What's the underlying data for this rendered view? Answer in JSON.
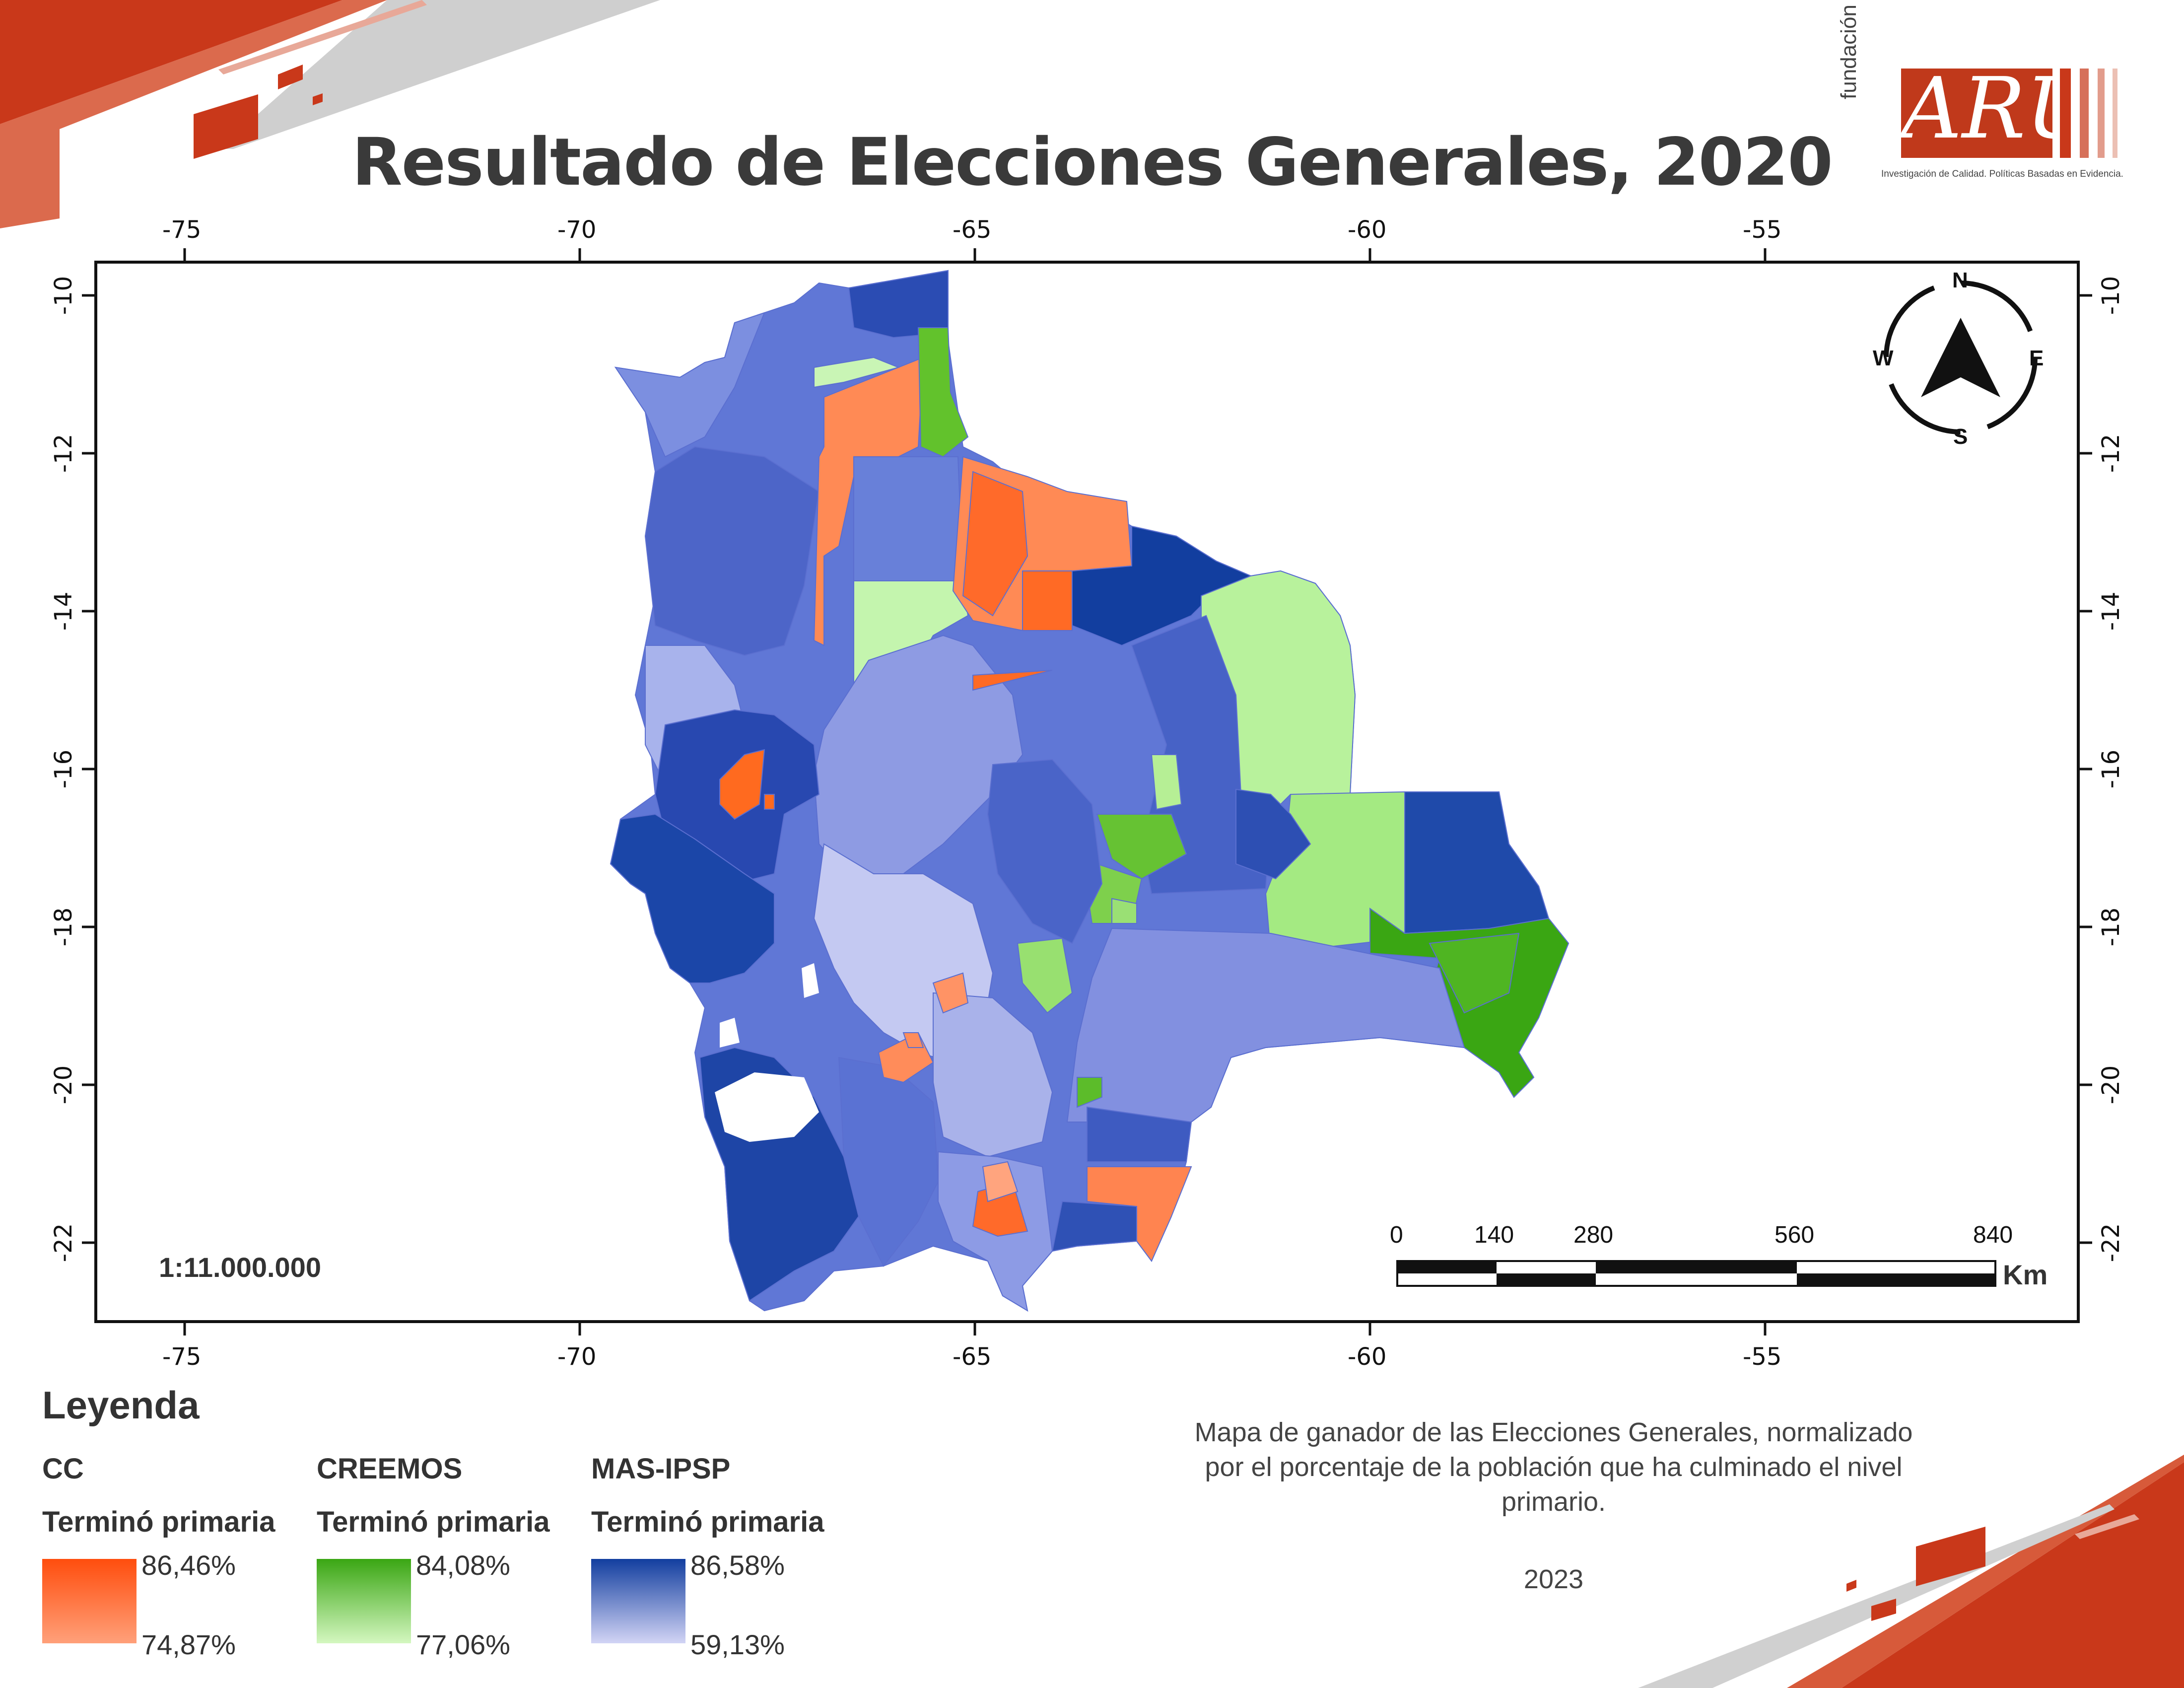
{
  "title": "Resultado de Elecciones Generales, 2020",
  "logo": {
    "fundacion": "fundación",
    "name": "ARU",
    "tagline": "Investigación de Calidad. Políticas Basadas en Evidencia."
  },
  "axes": {
    "x_ticks": [
      "-75",
      "-70",
      "-65",
      "-60",
      "-55"
    ],
    "y_ticks": [
      "-10",
      "-12",
      "-14",
      "-16",
      "-18",
      "-20",
      "-22"
    ]
  },
  "compass": {
    "n": "N",
    "s": "S",
    "e": "E",
    "w": "W"
  },
  "scale_bar": {
    "labels": [
      "0",
      "140",
      "280",
      "560",
      "840"
    ],
    "unit": "Km",
    "ratio": "1:11.000.000"
  },
  "legend": {
    "heading": "Leyenda",
    "items": [
      {
        "party": "CC",
        "subtitle": "Terminó primaria",
        "max": "86,46%",
        "min": "74,87%",
        "color_dark": "#ff4d0d",
        "color_light": "#ffa07a"
      },
      {
        "party": "CREEMOS",
        "subtitle": "Terminó primaria",
        "max": "84,08%",
        "min": "77,06%",
        "color_dark": "#3aa613",
        "color_light": "#d4f7c0"
      },
      {
        "party": "MAS-IPSP",
        "subtitle": "Terminó primaria",
        "max": "86,58%",
        "min": "59,13%",
        "color_dark": "#123e9f",
        "color_light": "#d2d4f5"
      }
    ]
  },
  "description": "Mapa de ganador de las Elecciones Generales, normalizado por el porcentaje de la población que ha culminado el nivel primario.",
  "year": "2023"
}
